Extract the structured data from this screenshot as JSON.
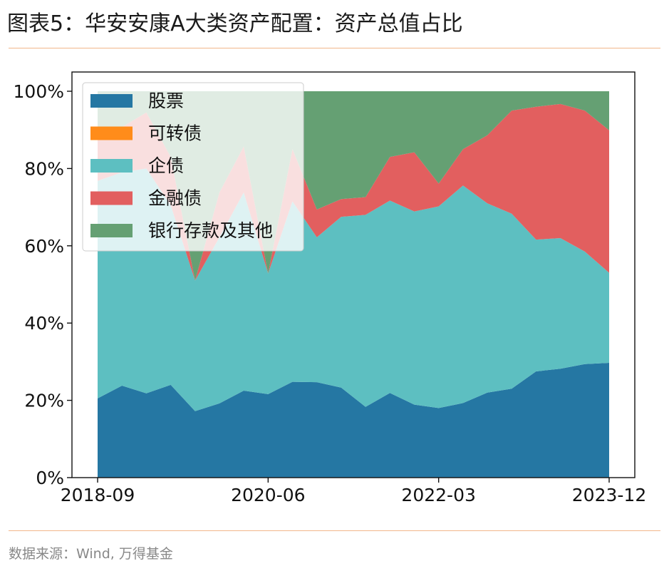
{
  "header": {
    "title": "图表5：华安安康A大类资产配置：资产总值占比"
  },
  "footer": {
    "source": "数据来源：Wind, 万得基金"
  },
  "chart_data": {
    "type": "area",
    "stacked": true,
    "x": [
      "2018-09",
      "2018-12",
      "2019-03",
      "2019-06",
      "2019-09",
      "2019-12",
      "2020-03",
      "2020-06",
      "2020-09",
      "2020-12",
      "2021-03",
      "2021-06",
      "2021-09",
      "2021-12",
      "2022-03",
      "2022-06",
      "2022-09",
      "2022-12",
      "2023-03",
      "2023-06",
      "2023-09",
      "2023-12"
    ],
    "xticks": [
      "2018-09",
      "2020-06",
      "2022-03",
      "2023-12"
    ],
    "ylim": [
      0,
      100
    ],
    "yticks": [
      "0%",
      "20%",
      "40%",
      "60%",
      "80%",
      "100%"
    ],
    "legend_position": "upper-left",
    "grid": false,
    "series": [
      {
        "name": "股票",
        "color": "#2577a3",
        "values": [
          20.5,
          23.8,
          21.8,
          24,
          17.2,
          19.2,
          22.5,
          21.6,
          24.8,
          24.7,
          23.3,
          18.3,
          21.9,
          18.9,
          18,
          19.3,
          22,
          23,
          27.5,
          28.2,
          29.4,
          29.7
        ]
      },
      {
        "name": "可转债",
        "color": "#ff8c1a",
        "values": [
          0,
          0,
          0,
          0,
          0,
          0,
          0,
          0,
          0,
          0,
          0,
          0,
          0,
          0,
          0,
          0,
          0,
          0,
          0,
          0,
          0,
          0
        ]
      },
      {
        "name": "企债",
        "color": "#5dbfc1",
        "values": [
          56.3,
          55.2,
          58.2,
          46.5,
          33.8,
          43,
          51.3,
          31.2,
          46.7,
          37.5,
          44.2,
          49.7,
          49.8,
          50,
          52.2,
          56.3,
          49,
          45.3,
          34.1,
          33.8,
          29.1,
          23.3
        ]
      },
      {
        "name": "金融债",
        "color": "#e25f5f",
        "values": [
          11.4,
          11.7,
          14.5,
          12.5,
          0,
          11.6,
          11.9,
          0,
          13.5,
          7.2,
          4.6,
          4.6,
          11.3,
          15.3,
          5.9,
          9.4,
          17.6,
          26.7,
          34.4,
          34.7,
          36.5,
          36.9
        ]
      },
      {
        "name": "银行存款及其他",
        "color": "#65a073",
        "values": [
          11.8,
          9.3,
          5.5,
          17,
          49,
          26.2,
          14.3,
          47.2,
          15,
          30.6,
          27.9,
          27.4,
          17,
          15.8,
          23.9,
          15,
          11.4,
          5,
          4,
          3.3,
          5,
          10.1
        ]
      }
    ]
  }
}
